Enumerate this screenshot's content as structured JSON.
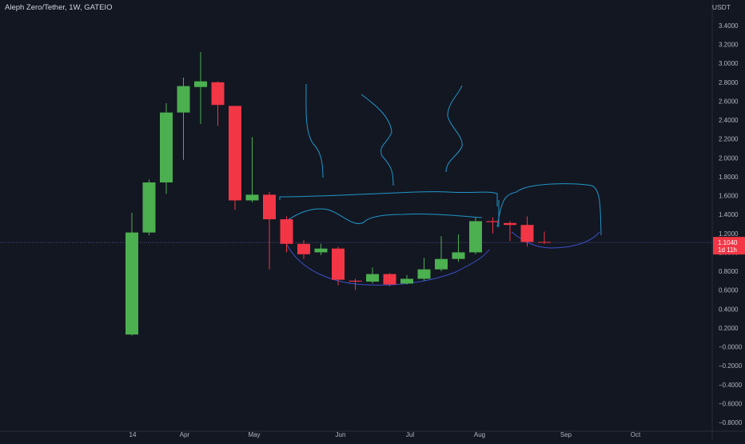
{
  "header": {
    "symbol_title": "Aleph Zero/Tether, 1W, GATEIO",
    "currency": "USDT"
  },
  "price_tag": {
    "price": "1.1040",
    "countdown": "1d 11h",
    "value": 1.104
  },
  "colors": {
    "background": "#131722",
    "up": "#4caf50",
    "down": "#f23645",
    "axis_text": "#b2b5be",
    "drawing": "#2196c8",
    "drawing_curve": "#3c4fc4",
    "price_line": "#5b5f9e"
  },
  "chart_data": {
    "type": "candlestick",
    "title": "Aleph Zero/Tether, 1W, GATEIO",
    "ylabel": "USDT",
    "ylim": [
      -0.8,
      3.4
    ],
    "y_ticks": [
      "3.4000",
      "3.2000",
      "3.0000",
      "2.8000",
      "2.6000",
      "2.4000",
      "2.2000",
      "2.0000",
      "1.8000",
      "1.6000",
      "1.4000",
      "1.2000",
      "1.0000",
      "0.8000",
      "0.6000",
      "0.4000",
      "0.2000",
      "−0.0000",
      "−0.2000",
      "−0.4000",
      "−0.6000",
      "−0.8000"
    ],
    "x_labels": [
      "14",
      "Apr",
      "May",
      "Jun",
      "Jul",
      "Aug",
      "Sep",
      "Oct"
    ],
    "grid": false,
    "candles": [
      {
        "o": 0.13,
        "h": 1.42,
        "l": 0.12,
        "c": 1.21
      },
      {
        "o": 1.21,
        "h": 1.77,
        "l": 1.18,
        "c": 1.74
      },
      {
        "o": 1.74,
        "h": 2.58,
        "l": 1.62,
        "c": 2.48
      },
      {
        "o": 2.48,
        "h": 2.85,
        "l": 1.98,
        "c": 2.76
      },
      {
        "o": 2.75,
        "h": 3.12,
        "l": 2.36,
        "c": 2.81
      },
      {
        "o": 2.8,
        "h": 2.81,
        "l": 2.34,
        "c": 2.56
      },
      {
        "o": 2.55,
        "h": 2.55,
        "l": 1.45,
        "c": 1.55
      },
      {
        "o": 1.55,
        "h": 2.22,
        "l": 1.53,
        "c": 1.61
      },
      {
        "o": 1.61,
        "h": 1.64,
        "l": 0.82,
        "c": 1.35
      },
      {
        "o": 1.35,
        "h": 1.38,
        "l": 1.0,
        "c": 1.09
      },
      {
        "o": 1.09,
        "h": 1.13,
        "l": 0.93,
        "c": 0.98
      },
      {
        "o": 1.0,
        "h": 1.09,
        "l": 0.97,
        "c": 1.04
      },
      {
        "o": 1.04,
        "h": 1.06,
        "l": 0.65,
        "c": 0.71
      },
      {
        "o": 0.7,
        "h": 0.72,
        "l": 0.6,
        "c": 0.69
      },
      {
        "o": 0.69,
        "h": 0.84,
        "l": 0.67,
        "c": 0.77
      },
      {
        "o": 0.77,
        "h": 0.78,
        "l": 0.64,
        "c": 0.66
      },
      {
        "o": 0.67,
        "h": 0.76,
        "l": 0.66,
        "c": 0.72
      },
      {
        "o": 0.72,
        "h": 0.94,
        "l": 0.7,
        "c": 0.82
      },
      {
        "o": 0.82,
        "h": 1.17,
        "l": 0.8,
        "c": 0.93
      },
      {
        "o": 0.93,
        "h": 1.19,
        "l": 0.9,
        "c": 1.0
      },
      {
        "o": 1.0,
        "h": 1.37,
        "l": 0.98,
        "c": 1.33
      },
      {
        "o": 1.33,
        "h": 1.37,
        "l": 1.2,
        "c": 1.32
      },
      {
        "o": 1.31,
        "h": 1.33,
        "l": 1.12,
        "c": 1.29
      },
      {
        "o": 1.29,
        "h": 1.38,
        "l": 1.06,
        "c": 1.11
      },
      {
        "o": 1.11,
        "h": 1.22,
        "l": 1.09,
        "c": 1.104
      }
    ]
  }
}
